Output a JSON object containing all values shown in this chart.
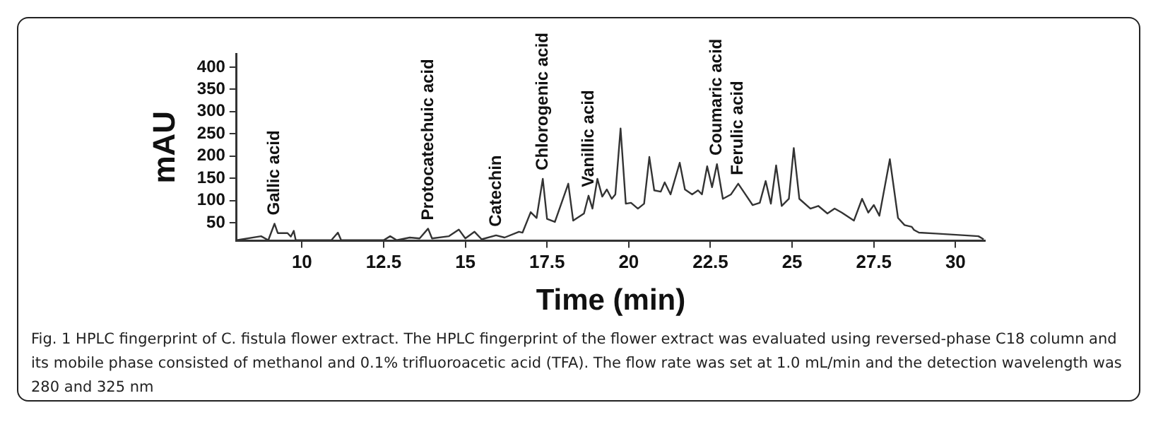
{
  "chart_data": {
    "type": "line",
    "xlabel": "Time (min)",
    "ylabel": "mAU",
    "xlim": [
      8,
      30.9
    ],
    "xticks": [
      10,
      12.5,
      15,
      17.5,
      20,
      22.5,
      25,
      27.5,
      30
    ],
    "ylim": [
      10,
      430
    ],
    "yticks": [
      50,
      100,
      150,
      200,
      250,
      300,
      350,
      400
    ],
    "grid": false,
    "legend": false,
    "marker": "none",
    "line_style": "solid",
    "series": [
      {
        "color": "#333333",
        "x": [
          8,
          8.75,
          8.97,
          9.16,
          9.26,
          9.56,
          9.66,
          9.75,
          9.81,
          10.9,
          11.1,
          11.2,
          12.5,
          12.7,
          12.9,
          13.3,
          13.6,
          13.86,
          13.98,
          14.5,
          14.8,
          15.0,
          15.28,
          15.5,
          15.94,
          16.2,
          16.64,
          16.75,
          17.0,
          17.18,
          17.37,
          17.5,
          17.74,
          18.15,
          18.3,
          18.63,
          18.77,
          18.89,
          19.04,
          19.19,
          19.33,
          19.48,
          19.59,
          19.75,
          19.91,
          20.07,
          20.28,
          20.47,
          20.63,
          20.78,
          20.98,
          21.1,
          21.28,
          21.56,
          21.72,
          21.94,
          22.12,
          22.24,
          22.4,
          22.55,
          22.7,
          22.88,
          23.13,
          23.35,
          23.57,
          23.79,
          24.01,
          24.19,
          24.35,
          24.51,
          24.68,
          24.9,
          25.05,
          25.22,
          25.56,
          25.8,
          26.08,
          26.3,
          26.52,
          26.89,
          27.14,
          27.33,
          27.5,
          27.67,
          27.99,
          28.24,
          28.44,
          28.66,
          28.73,
          28.88,
          29.4,
          29.84,
          30.28,
          30.7,
          30.86
        ],
        "values": [
          11,
          20,
          11,
          48,
          27,
          27,
          19,
          32,
          11,
          11,
          28,
          11,
          11,
          20,
          11,
          17,
          15,
          37,
          15,
          20,
          35,
          15,
          30,
          13,
          22,
          17,
          30,
          28,
          74,
          61,
          149,
          59,
          52,
          138,
          55,
          71,
          111,
          82,
          149,
          109,
          125,
          104,
          114,
          262,
          93,
          95,
          82,
          93,
          198,
          123,
          120,
          141,
          114,
          185,
          125,
          114,
          123,
          114,
          177,
          130,
          182,
          104,
          114,
          138,
          114,
          90,
          95,
          144,
          93,
          179,
          88,
          104,
          218,
          104,
          82,
          88,
          71,
          82,
          73,
          55,
          104,
          73,
          90,
          66,
          193,
          61,
          45,
          41,
          34,
          28,
          26,
          24,
          22,
          20,
          13
        ]
      }
    ],
    "annotations": [
      {
        "text": "Gallic acid",
        "x": 9.16,
        "y": 48
      },
      {
        "text": "Protocatechuic acid",
        "x": 13.86,
        "y": 37
      },
      {
        "text": "Catechin",
        "x": 15.94,
        "y": 22
      },
      {
        "text": "Chlorogenic acid",
        "x": 17.37,
        "y": 149
      },
      {
        "text": "Vanillic acid",
        "x": 18.77,
        "y": 111
      },
      {
        "text": "Coumaric acid",
        "x": 22.7,
        "y": 182
      },
      {
        "text": "Ferulic acid",
        "x": 23.35,
        "y": 138
      },
      "Fig. 1 HPLC fingerprint of C. fistula flower extract. The HPLC fingerprint of the flower extract was evaluated using reversed-phase C18 column and its mobile phase consisted of methanol and 0.1% trifluoroacetic acid (TFA). The flow rate was set at 1.0 mL/min and the detection wavelength was 280 and 325 nm"
    ]
  }
}
